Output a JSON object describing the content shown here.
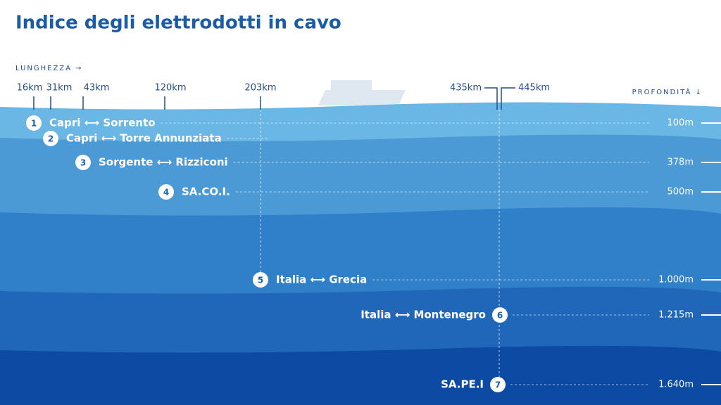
{
  "header": {
    "title": "Indice degli elettrodotti in cavo",
    "length_axis": "LUNGHEZZA →",
    "depth_axis": "PROFONDITÀ ↓"
  },
  "lengths": [
    "16km",
    "31km",
    "43km",
    "120km",
    "203km",
    "435km",
    "445km"
  ],
  "cables": [
    {
      "number": "1",
      "label": "Capri ⟷ Sorrento",
      "depth": "100m"
    },
    {
      "number": "2",
      "label": "Capri ⟷ Torre Annunziata",
      "depth": null
    },
    {
      "number": "3",
      "label": "Sorgente ⟷ Rizziconi",
      "depth": "378m"
    },
    {
      "number": "4",
      "label": "SA.CO.I.",
      "depth": "500m"
    },
    {
      "number": "5",
      "label": "Italia ⟷ Grecia",
      "depth": "1.000m"
    },
    {
      "number": "6",
      "label": "Italia ⟷ Montenegro",
      "depth": "1.215m"
    },
    {
      "number": "7",
      "label": "SA.PE.I",
      "depth": "1.640m"
    }
  ]
}
